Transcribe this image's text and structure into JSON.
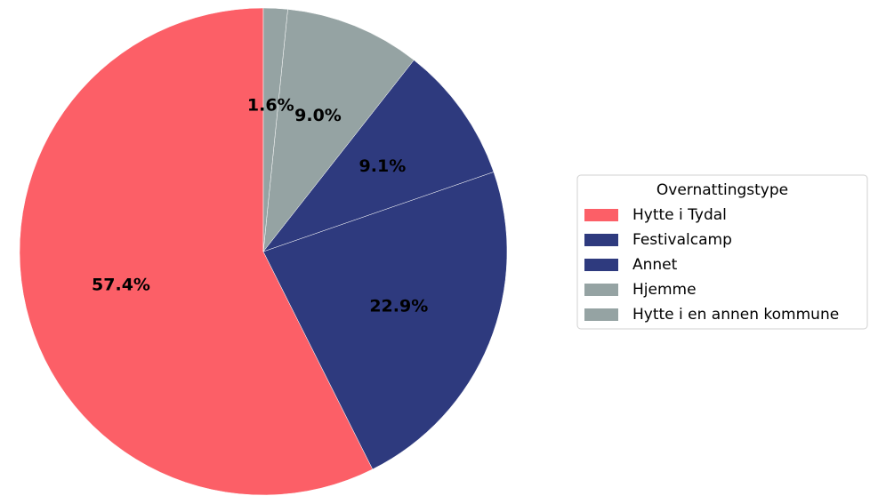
{
  "chart_data": {
    "type": "pie",
    "legend_title": "Overnattingstype",
    "legend": "right",
    "categories": [
      "Hytte i Tydal",
      "Festivalcamp",
      "Annet",
      "Hjemme",
      "Hytte i en annen kommune"
    ],
    "values": [
      57.4,
      22.9,
      9.1,
      9.0,
      1.6
    ],
    "value_labels": [
      "57.4%",
      "22.9%",
      "9.1%",
      "9.0%",
      "1.6%"
    ],
    "colors": [
      "#fc5f67",
      "#2e3a7e",
      "#2e3a7e",
      "#95a3a3",
      "#95a3a3"
    ]
  }
}
